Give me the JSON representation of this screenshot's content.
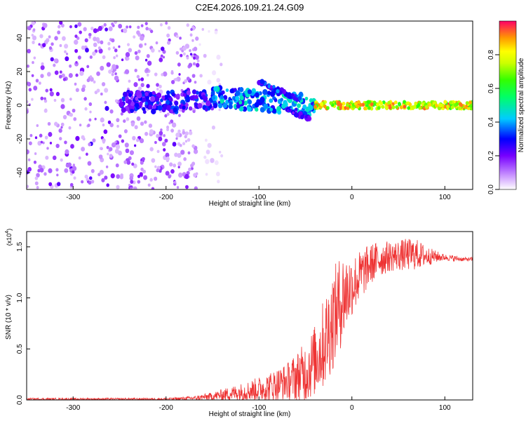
{
  "title": "C2E4.2026.109.21.24.G09",
  "chart_data": [
    {
      "type": "heatmap",
      "xlabel": "Height of straight line (km)",
      "ylabel": "Frequency (Hz)",
      "xlim": [
        -350,
        130
      ],
      "ylim": [
        -50,
        50
      ],
      "xticks": [
        -300,
        -200,
        -100,
        0,
        100
      ],
      "xtick_labels": [
        "-300",
        "-200",
        "-100",
        "0",
        "100"
      ],
      "yticks": [
        -40,
        -20,
        0,
        20,
        40
      ],
      "ytick_labels": [
        "-40",
        "-20",
        "0",
        "20",
        "40"
      ],
      "colorbar": {
        "label": "Normalized spectral amplitude",
        "range": [
          0,
          1
        ],
        "ticks": [
          0.0,
          0.2,
          0.4,
          0.6,
          0.8
        ],
        "tick_labels": [
          "0.0",
          "0.2",
          "0.4",
          "0.6",
          "0.8"
        ]
      },
      "regions": [
        {
          "name": "noise",
          "x_range": [
            -350,
            -165
          ],
          "freq_range": [
            -50,
            50
          ],
          "amplitude_range": [
            0.05,
            0.2
          ]
        },
        {
          "name": "sparse-noise",
          "x_range": [
            -165,
            -140
          ],
          "freq_range": [
            -50,
            50
          ],
          "amplitude_range": [
            0.02,
            0.08
          ]
        },
        {
          "name": "faint-band",
          "x_range": [
            -250,
            -150
          ],
          "freq_center": 2,
          "freq_halfwidth": 6,
          "amplitude_range": [
            0.15,
            0.35
          ]
        },
        {
          "name": "signal-band",
          "x_range": [
            -150,
            -40
          ],
          "freq_center_start": 5,
          "freq_center_end": 0,
          "freq_halfwidth": 6,
          "amplitude_range": [
            0.25,
            0.5
          ]
        },
        {
          "name": "branch-upper",
          "x_range": [
            -100,
            -55
          ],
          "freq_start": 14,
          "freq_end": 3,
          "amplitude_range": [
            0.2,
            0.4
          ]
        },
        {
          "name": "branch-lower",
          "x_range": [
            -70,
            -45
          ],
          "freq_start": -3,
          "freq_end": -8,
          "amplitude_range": [
            0.15,
            0.3
          ]
        },
        {
          "name": "steady-carrier",
          "x_range": [
            -40,
            130
          ],
          "freq_center": 0,
          "freq_halfwidth": 2,
          "amplitude_range": [
            0.6,
            0.95
          ]
        }
      ]
    },
    {
      "type": "line",
      "xlabel": "Height of straight line (km)",
      "ylabel": "SNR (10 * v/v)",
      "y_multiplier": "(x10",
      "y_multiplier_exp": "4",
      "y_multiplier_close": ")",
      "xlim": [
        -350,
        130
      ],
      "ylim": [
        0,
        1.65
      ],
      "xticks": [
        -300,
        -200,
        -100,
        0,
        100
      ],
      "xtick_labels": [
        "-300",
        "-200",
        "-100",
        "0",
        "100"
      ],
      "yticks": [
        0.0,
        0.5,
        1.0,
        1.5
      ],
      "ytick_labels": [
        "0.0",
        "0.5",
        "1.0",
        "1.5"
      ],
      "color": "#ee3333",
      "series": [
        {
          "name": "SNR",
          "x": [
            -350,
            -300,
            -250,
            -200,
            -170,
            -150,
            -130,
            -110,
            -90,
            -70,
            -50,
            -40,
            -30,
            -20,
            -10,
            0,
            10,
            20,
            30,
            40,
            50,
            60,
            70,
            80,
            90,
            100,
            110,
            120,
            130
          ],
          "y_mean": [
            0.01,
            0.01,
            0.01,
            0.01,
            0.02,
            0.04,
            0.07,
            0.1,
            0.14,
            0.2,
            0.3,
            0.42,
            0.6,
            0.85,
            1.05,
            1.15,
            1.25,
            1.35,
            1.4,
            1.42,
            1.43,
            1.44,
            1.44,
            1.42,
            1.41,
            1.4,
            1.39,
            1.38,
            1.38
          ],
          "y_spread": [
            0.01,
            0.01,
            0.01,
            0.01,
            0.02,
            0.04,
            0.07,
            0.1,
            0.14,
            0.18,
            0.3,
            0.35,
            0.45,
            0.5,
            0.45,
            0.3,
            0.25,
            0.2,
            0.18,
            0.15,
            0.15,
            0.16,
            0.15,
            0.1,
            0.06,
            0.03,
            0.03,
            0.02,
            0.02
          ]
        }
      ]
    }
  ]
}
